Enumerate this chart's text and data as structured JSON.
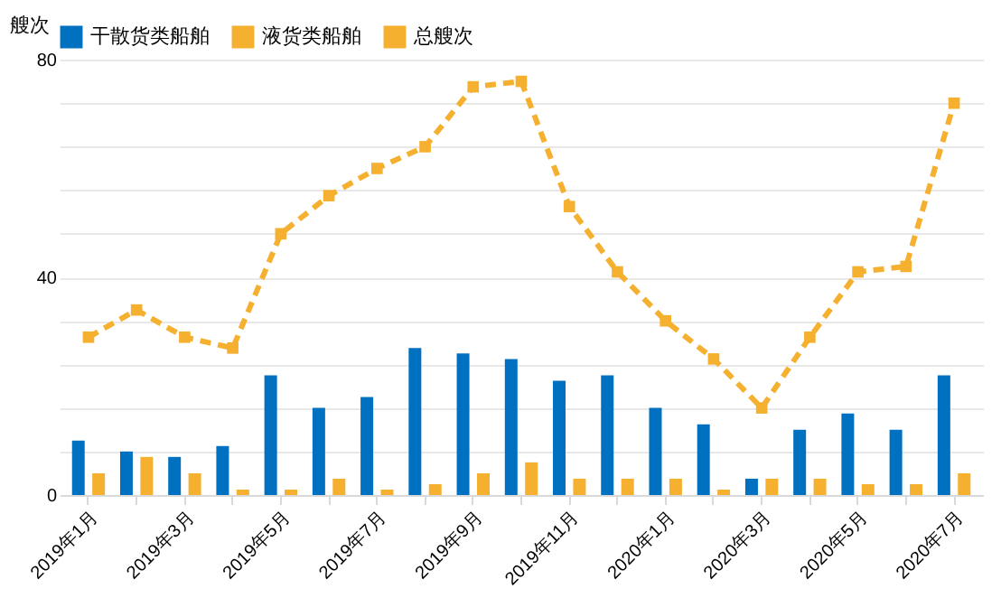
{
  "chart_data": {
    "type": "bar",
    "ylabel": "艘次",
    "categories": [
      "2019年1月",
      null,
      "2019年3月",
      null,
      "2019年5月",
      null,
      "2019年7月",
      null,
      "2019年9月",
      null,
      "2019年11月",
      null,
      "2020年1月",
      null,
      "2020年3月",
      null,
      "2020年5月",
      null,
      "2020年7月"
    ],
    "series": [
      {
        "name": "干散货类船舶",
        "color": "#0070c0",
        "values": [
          10,
          8,
          7,
          9,
          22,
          16,
          18,
          27,
          26,
          25,
          21,
          22,
          16,
          13,
          3,
          12,
          15,
          12,
          22
        ]
      },
      {
        "name": "液货类船舶",
        "color": "#f5b030",
        "values": [
          4,
          7,
          4,
          1,
          1,
          3,
          1,
          2,
          4,
          6,
          3,
          3,
          3,
          1,
          3,
          3,
          2,
          2,
          4
        ]
      },
      {
        "name": "总艘次",
        "type": "line",
        "color": "#f5b030",
        "marker": "square",
        "line_style": "dashed",
        "values": [
          29,
          34,
          29,
          27,
          48,
          55,
          60,
          64,
          75,
          76,
          53,
          41,
          32,
          25,
          16,
          29,
          41,
          42,
          72
        ]
      }
    ],
    "ylim": [
      0,
      80
    ],
    "yticks": [
      0,
      {
        "value": 8,
        "label": null
      },
      {
        "value": 16,
        "label": null
      },
      {
        "value": 24,
        "label": null
      },
      {
        "value": 32,
        "label": null
      },
      40,
      {
        "value": 48,
        "label": null
      },
      {
        "value": 56,
        "label": null
      },
      {
        "value": 64,
        "label": null
      },
      {
        "value": 72,
        "label": null
      },
      80
    ],
    "grid": "y",
    "legend": "top"
  }
}
